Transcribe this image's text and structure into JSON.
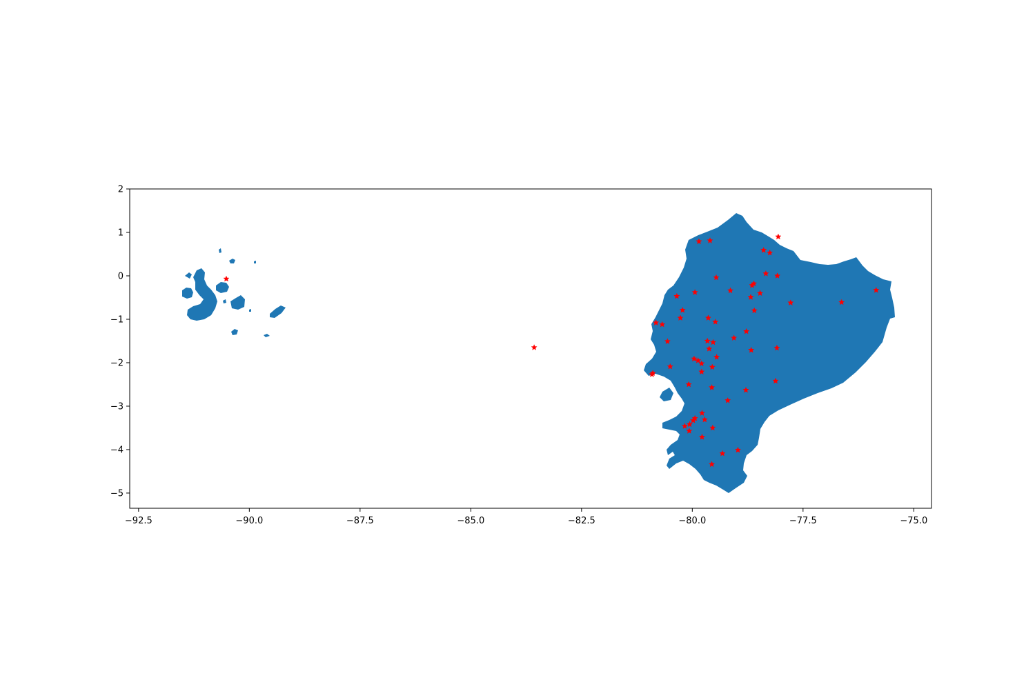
{
  "chart_data": {
    "type": "scatter",
    "title": "",
    "xlabel": "",
    "ylabel": "",
    "xlim": [
      -92.7,
      -74.6
    ],
    "ylim": [
      -5.35,
      2.0
    ],
    "grid": false,
    "x_ticks": [
      -92.5,
      -90.0,
      -87.5,
      -85.0,
      -82.5,
      -80.0,
      -77.5,
      -75.0
    ],
    "x_tick_labels": [
      "−92.5",
      "−90.0",
      "−87.5",
      "−85.0",
      "−82.5",
      "−80.0",
      "−77.5",
      "−75.0"
    ],
    "y_ticks": [
      2,
      1,
      0,
      -1,
      -2,
      -3,
      -4,
      -5
    ],
    "y_tick_labels": [
      "2",
      "1",
      "0",
      "−1",
      "−2",
      "−3",
      "−4",
      "−5"
    ],
    "land_color": "#1f77b4",
    "marker_color": "#ff0000",
    "marker": "star",
    "points": [
      [
        -90.52,
        -0.07
      ],
      [
        -83.57,
        -1.65
      ],
      [
        -79.85,
        0.79
      ],
      [
        -79.6,
        0.81
      ],
      [
        -78.06,
        0.9
      ],
      [
        -78.39,
        0.59
      ],
      [
        -78.25,
        0.53
      ],
      [
        -78.34,
        0.05
      ],
      [
        -78.08,
        0.0
      ],
      [
        -79.46,
        -0.04
      ],
      [
        -79.14,
        -0.34
      ],
      [
        -79.94,
        -0.38
      ],
      [
        -80.35,
        -0.47
      ],
      [
        -78.61,
        -0.18
      ],
      [
        -78.65,
        -0.22
      ],
      [
        -78.47,
        -0.4
      ],
      [
        -78.68,
        -0.49
      ],
      [
        -78.6,
        -0.8
      ],
      [
        -77.78,
        -0.62
      ],
      [
        -76.63,
        -0.61
      ],
      [
        -75.85,
        -0.33
      ],
      [
        -80.22,
        -0.79
      ],
      [
        -80.27,
        -0.97
      ],
      [
        -79.64,
        -0.97
      ],
      [
        -79.48,
        -1.06
      ],
      [
        -80.82,
        -1.08
      ],
      [
        -80.68,
        -1.12
      ],
      [
        -80.56,
        -1.51
      ],
      [
        -79.66,
        -1.5
      ],
      [
        -79.53,
        -1.53
      ],
      [
        -79.06,
        -1.43
      ],
      [
        -78.78,
        -1.28
      ],
      [
        -78.67,
        -1.71
      ],
      [
        -78.09,
        -1.66
      ],
      [
        -79.62,
        -1.68
      ],
      [
        -79.45,
        -1.87
      ],
      [
        -79.96,
        -1.91
      ],
      [
        -79.87,
        -1.95
      ],
      [
        -79.79,
        -2.02
      ],
      [
        -79.55,
        -2.1
      ],
      [
        -80.5,
        -2.09
      ],
      [
        -79.79,
        -2.21
      ],
      [
        -80.89,
        -2.24
      ],
      [
        -80.91,
        -2.27
      ],
      [
        -79.56,
        -2.57
      ],
      [
        -80.08,
        -2.5
      ],
      [
        -79.2,
        -2.87
      ],
      [
        -78.79,
        -2.63
      ],
      [
        -78.12,
        -2.42
      ],
      [
        -79.78,
        -3.16
      ],
      [
        -79.94,
        -3.28
      ],
      [
        -79.98,
        -3.33
      ],
      [
        -79.72,
        -3.31
      ],
      [
        -80.06,
        -3.42
      ],
      [
        -80.17,
        -3.46
      ],
      [
        -80.07,
        -3.57
      ],
      [
        -79.54,
        -3.5
      ],
      [
        -79.78,
        -3.71
      ],
      [
        -79.32,
        -4.09
      ],
      [
        -78.97,
        -4.01
      ],
      [
        -79.56,
        -4.34
      ]
    ]
  }
}
